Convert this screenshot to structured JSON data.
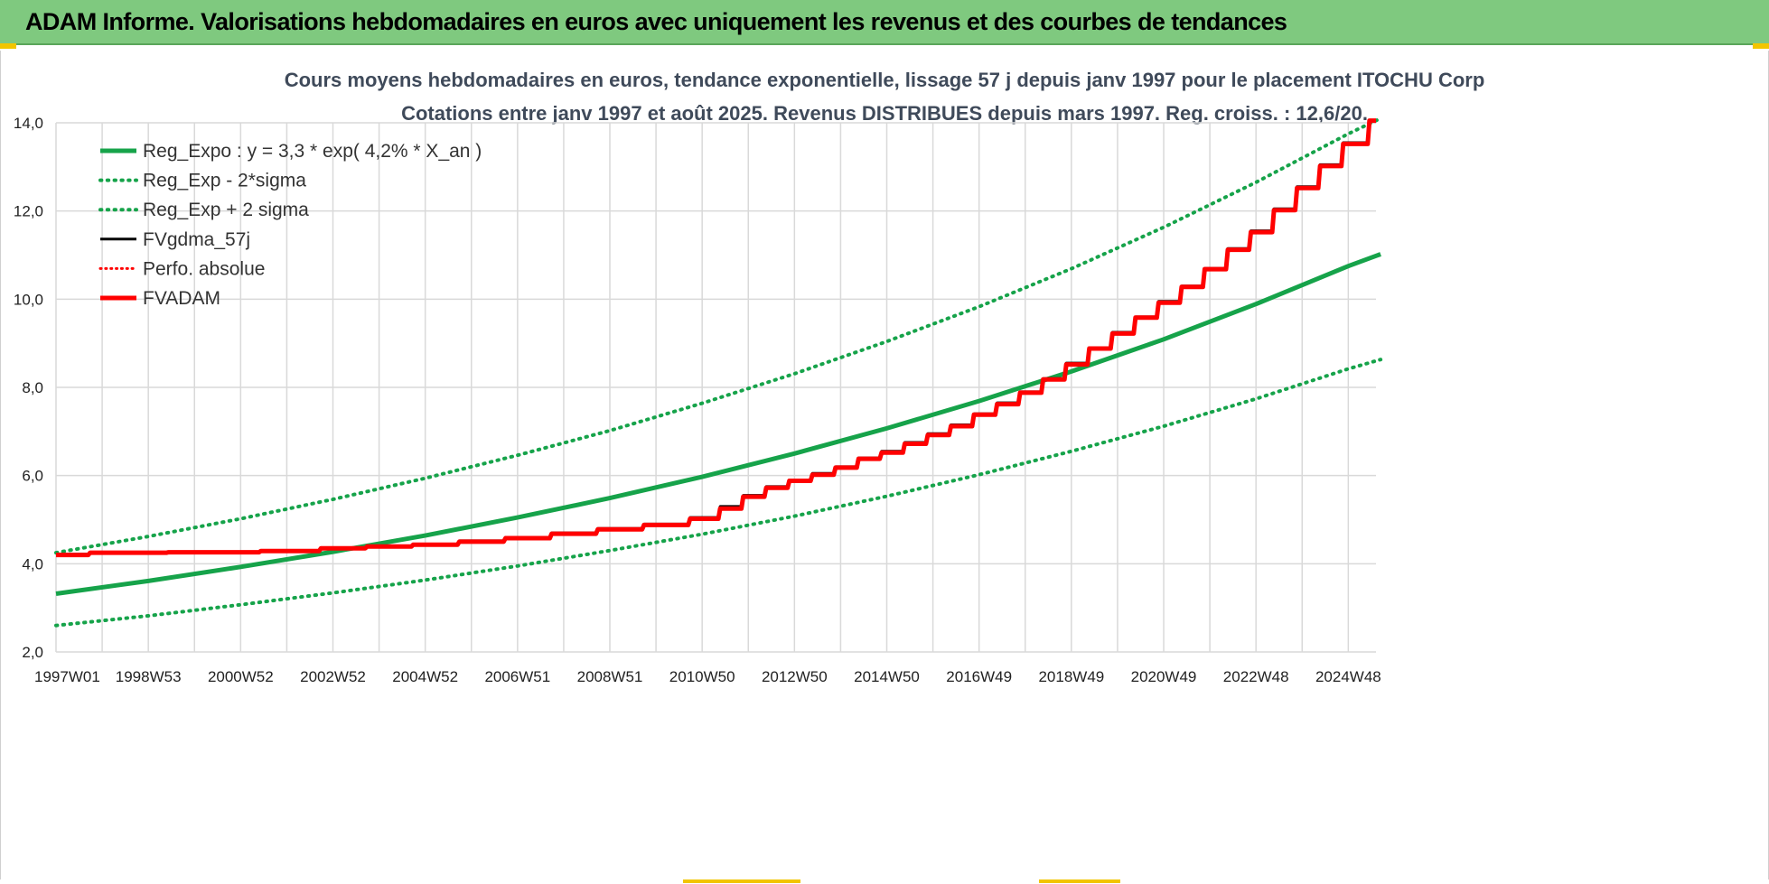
{
  "header": {
    "title": "ADAM Informe. Valorisations hebdomadaires en euros avec uniquement les revenus et des courbes de tendances"
  },
  "colors": {
    "header_bg": "#7fc97f",
    "reg_green": "#16a34a",
    "fv_red": "#ff0000",
    "fv_black": "#000000",
    "grid": "#d9d9d9",
    "title_text": "#3f4a5a"
  },
  "chart_data": {
    "type": "line",
    "title": "Cours moyens hebdomadaires en euros, tendance exponentielle, lissage 57 j depuis janv 1997 pour le placement ITOCHU Corp",
    "subtitle": "Cotations entre janv 1997 et août 2025. Revenus DISTRIBUES depuis mars 1997. Reg. croiss. : 12,6/20.",
    "xlabel": "",
    "ylabel": "",
    "ylim": [
      2.0,
      14.0
    ],
    "xlim": [
      1997.0,
      2025.6
    ],
    "grid": true,
    "legend_position": "top-left",
    "y_ticks": [
      "2,0",
      "4,0",
      "6,0",
      "8,0",
      "10,0",
      "12,0",
      "14,0"
    ],
    "y_tick_values": [
      2,
      4,
      6,
      8,
      10,
      12,
      14
    ],
    "x_tick_labels": [
      "1997W01",
      "1998W53",
      "2000W52",
      "2002W52",
      "2004W52",
      "2006W51",
      "2008W51",
      "2010W50",
      "2012W50",
      "2014W50",
      "2016W49",
      "2018W49",
      "2020W49",
      "2022W48",
      "2024W48"
    ],
    "x_tick_years": [
      1997.0,
      1999.0,
      2001.0,
      2003.0,
      2005.0,
      2007.0,
      2009.0,
      2011.0,
      2013.0,
      2015.0,
      2017.0,
      2019.0,
      2021.0,
      2023.0,
      2025.0
    ],
    "legend": [
      {
        "label": "Reg_Expo : y = 3,3 * exp( 4,2% *  X_an )",
        "color": "#16a34a",
        "style": "solid",
        "width": 5
      },
      {
        "label": "Reg_Exp - 2*sigma",
        "color": "#16a34a",
        "style": "dotted",
        "width": 4
      },
      {
        "label": "Reg_Exp + 2 sigma",
        "color": "#16a34a",
        "style": "dotted",
        "width": 4
      },
      {
        "label": "FVgdma_57j",
        "color": "#000000",
        "style": "solid",
        "width": 3
      },
      {
        "label": "Perfo. absolue",
        "color": "#ff0000",
        "style": "dotted",
        "width": 3
      },
      {
        "label": "FVADAM",
        "color": "#ff0000",
        "style": "solid",
        "width": 5
      }
    ],
    "series": [
      {
        "name": "Reg_Expo : y = 3,3 * exp( 4,2% *  X_an )",
        "color": "#16a34a",
        "style": "solid",
        "width": 5,
        "x": [
          1997.0,
          1999.0,
          2001.0,
          2003.0,
          2005.0,
          2007.0,
          2009.0,
          2011.0,
          2013.0,
          2015.0,
          2017.0,
          2019.0,
          2021.0,
          2023.0,
          2025.0,
          2025.7
        ],
        "y": [
          3.32,
          3.61,
          3.93,
          4.27,
          4.64,
          5.05,
          5.49,
          5.97,
          6.5,
          7.07,
          7.69,
          8.36,
          9.09,
          9.89,
          10.75,
          11.02
        ]
      },
      {
        "name": "Reg_Exp - 2*sigma",
        "color": "#16a34a",
        "style": "dotted",
        "width": 4,
        "x": [
          1997.0,
          1999.0,
          2001.0,
          2003.0,
          2005.0,
          2007.0,
          2009.0,
          2011.0,
          2013.0,
          2015.0,
          2017.0,
          2019.0,
          2021.0,
          2023.0,
          2025.0,
          2025.7
        ],
        "y": [
          2.6,
          2.82,
          3.07,
          3.34,
          3.63,
          3.95,
          4.3,
          4.67,
          5.08,
          5.53,
          6.02,
          6.55,
          7.12,
          7.74,
          8.42,
          8.63
        ]
      },
      {
        "name": "Reg_Exp + 2 sigma",
        "color": "#16a34a",
        "style": "dotted",
        "width": 4,
        "x": [
          1997.0,
          1999.0,
          2001.0,
          2003.0,
          2005.0,
          2007.0,
          2009.0,
          2011.0,
          2013.0,
          2015.0,
          2017.0,
          2019.0,
          2021.0,
          2023.0,
          2025.0,
          2025.7
        ],
        "y": [
          4.25,
          4.62,
          5.02,
          5.46,
          5.94,
          6.46,
          7.02,
          7.64,
          8.31,
          9.04,
          9.83,
          10.69,
          11.63,
          12.65,
          13.75,
          14.1
        ]
      },
      {
        "name": "FVgdma_57j",
        "color": "#000000",
        "style": "solid",
        "width": 3,
        "x": [
          1997.0,
          1998.0,
          2000.0,
          2002.0,
          2003.0,
          2004.0,
          2005.0,
          2006.0,
          2007.0,
          2008.0,
          2009.0,
          2010.0,
          2011.0,
          2011.5,
          2012.0,
          2012.5,
          2013.0,
          2013.5,
          2014.0,
          2014.5,
          2015.0,
          2015.5,
          2016.0,
          2016.5,
          2017.0,
          2017.5,
          2018.0,
          2018.5,
          2019.0,
          2019.5,
          2020.0,
          2020.5,
          2021.0,
          2021.5,
          2022.0,
          2022.5,
          2023.0,
          2023.5,
          2024.0,
          2024.5,
          2025.0,
          2025.6
        ],
        "y": [
          4.22,
          4.26,
          4.27,
          4.3,
          4.36,
          4.4,
          4.44,
          4.52,
          4.6,
          4.7,
          4.8,
          4.9,
          5.05,
          5.3,
          5.55,
          5.75,
          5.9,
          6.05,
          6.2,
          6.4,
          6.55,
          6.75,
          6.95,
          7.15,
          7.4,
          7.65,
          7.9,
          8.2,
          8.55,
          8.9,
          9.25,
          9.6,
          9.95,
          10.3,
          10.7,
          11.15,
          11.55,
          12.05,
          12.55,
          13.05,
          13.55,
          14.05
        ]
      },
      {
        "name": "FVADAM",
        "color": "#ff0000",
        "style": "solid",
        "width": 5,
        "x": [
          1997.0,
          1998.0,
          2000.0,
          2002.0,
          2003.0,
          2004.0,
          2005.0,
          2006.0,
          2007.0,
          2008.0,
          2009.0,
          2010.0,
          2011.0,
          2011.5,
          2012.0,
          2012.5,
          2013.0,
          2013.5,
          2014.0,
          2014.5,
          2015.0,
          2015.5,
          2016.0,
          2016.5,
          2017.0,
          2017.5,
          2018.0,
          2018.5,
          2019.0,
          2019.5,
          2020.0,
          2020.5,
          2021.0,
          2021.5,
          2022.0,
          2022.5,
          2023.0,
          2023.5,
          2024.0,
          2024.5,
          2025.0,
          2025.6
        ],
        "y": [
          4.2,
          4.25,
          4.26,
          4.29,
          4.35,
          4.39,
          4.43,
          4.5,
          4.58,
          4.68,
          4.78,
          4.88,
          5.02,
          5.25,
          5.52,
          5.72,
          5.88,
          6.02,
          6.18,
          6.38,
          6.52,
          6.72,
          6.92,
          7.12,
          7.38,
          7.62,
          7.88,
          8.18,
          8.52,
          8.88,
          9.22,
          9.58,
          9.92,
          10.28,
          10.68,
          11.12,
          11.52,
          12.02,
          12.52,
          13.02,
          13.52,
          14.05
        ]
      }
    ]
  }
}
